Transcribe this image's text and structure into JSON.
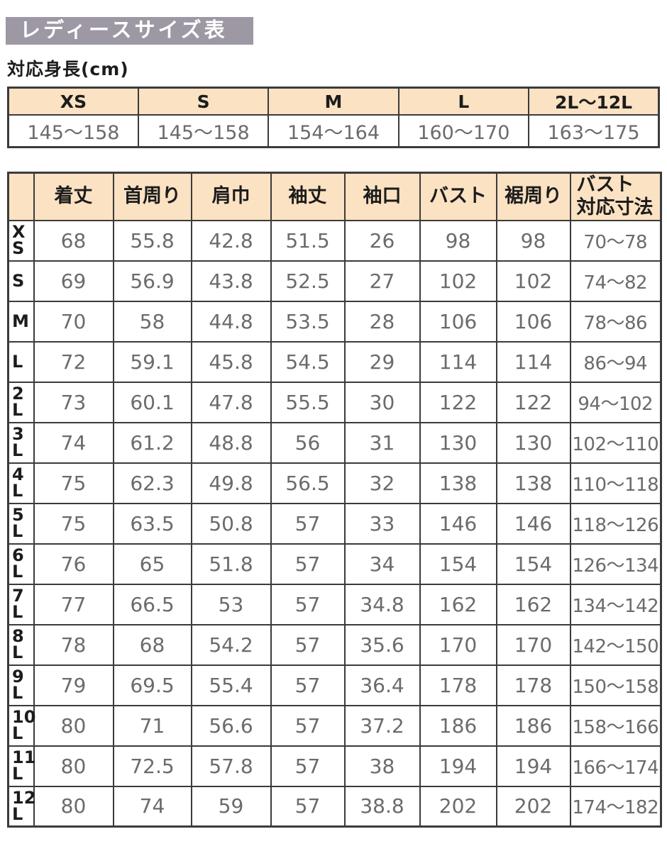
{
  "page": {
    "title": "レディースサイズ表",
    "subtitle": "対応身長(cm)"
  },
  "height_table": {
    "columns": [
      "XS",
      "S",
      "M",
      "L",
      "2L～12L"
    ],
    "values": [
      "145～158",
      "145～158",
      "154～164",
      "160～170",
      "163～175"
    ]
  },
  "size_table": {
    "columns": [
      "",
      "着丈",
      "首周り",
      "肩巾",
      "袖丈",
      "袖口",
      "バスト",
      "裾周り",
      "バスト\n対応寸法"
    ],
    "rows": [
      {
        "size": "X\nS",
        "values": [
          "68",
          "55.8",
          "42.8",
          "51.5",
          "26",
          "98",
          "98",
          "70～78"
        ]
      },
      {
        "size": "S",
        "values": [
          "69",
          "56.9",
          "43.8",
          "52.5",
          "27",
          "102",
          "102",
          "74～82"
        ]
      },
      {
        "size": "M",
        "values": [
          "70",
          "58",
          "44.8",
          "53.5",
          "28",
          "106",
          "106",
          "78～86"
        ]
      },
      {
        "size": "L",
        "values": [
          "72",
          "59.1",
          "45.8",
          "54.5",
          "29",
          "114",
          "114",
          "86～94"
        ]
      },
      {
        "size": "2\nL",
        "values": [
          "73",
          "60.1",
          "47.8",
          "55.5",
          "30",
          "122",
          "122",
          "94～102"
        ]
      },
      {
        "size": "3\nL",
        "values": [
          "74",
          "61.2",
          "48.8",
          "56",
          "31",
          "130",
          "130",
          "102～110"
        ]
      },
      {
        "size": "4\nL",
        "values": [
          "75",
          "62.3",
          "49.8",
          "56.5",
          "32",
          "138",
          "138",
          "110～118"
        ]
      },
      {
        "size": "5\nL",
        "values": [
          "75",
          "63.5",
          "50.8",
          "57",
          "33",
          "146",
          "146",
          "118～126"
        ]
      },
      {
        "size": "6\nL",
        "values": [
          "76",
          "65",
          "51.8",
          "57",
          "34",
          "154",
          "154",
          "126～134"
        ]
      },
      {
        "size": "7\nL",
        "values": [
          "77",
          "66.5",
          "53",
          "57",
          "34.8",
          "162",
          "162",
          "134～142"
        ]
      },
      {
        "size": "8\nL",
        "values": [
          "78",
          "68",
          "54.2",
          "57",
          "35.6",
          "170",
          "170",
          "142～150"
        ]
      },
      {
        "size": "9\nL",
        "values": [
          "79",
          "69.5",
          "55.4",
          "57",
          "36.4",
          "178",
          "178",
          "150～158"
        ]
      },
      {
        "size": "10\nL",
        "values": [
          "80",
          "71",
          "56.6",
          "57",
          "37.2",
          "186",
          "186",
          "158～166"
        ]
      },
      {
        "size": "11\nL",
        "values": [
          "80",
          "72.5",
          "57.8",
          "57",
          "38",
          "194",
          "194",
          "166～174"
        ]
      },
      {
        "size": "12\nL",
        "values": [
          "80",
          "74",
          "59",
          "57",
          "38.8",
          "202",
          "202",
          "174～182"
        ]
      }
    ]
  },
  "colors": {
    "header_bg": "#fbe2c3",
    "title_bg": "#9d98a3",
    "border": "#3b3b3b",
    "value_text": "#6b6b6b",
    "label_text": "#1c1c1c"
  }
}
